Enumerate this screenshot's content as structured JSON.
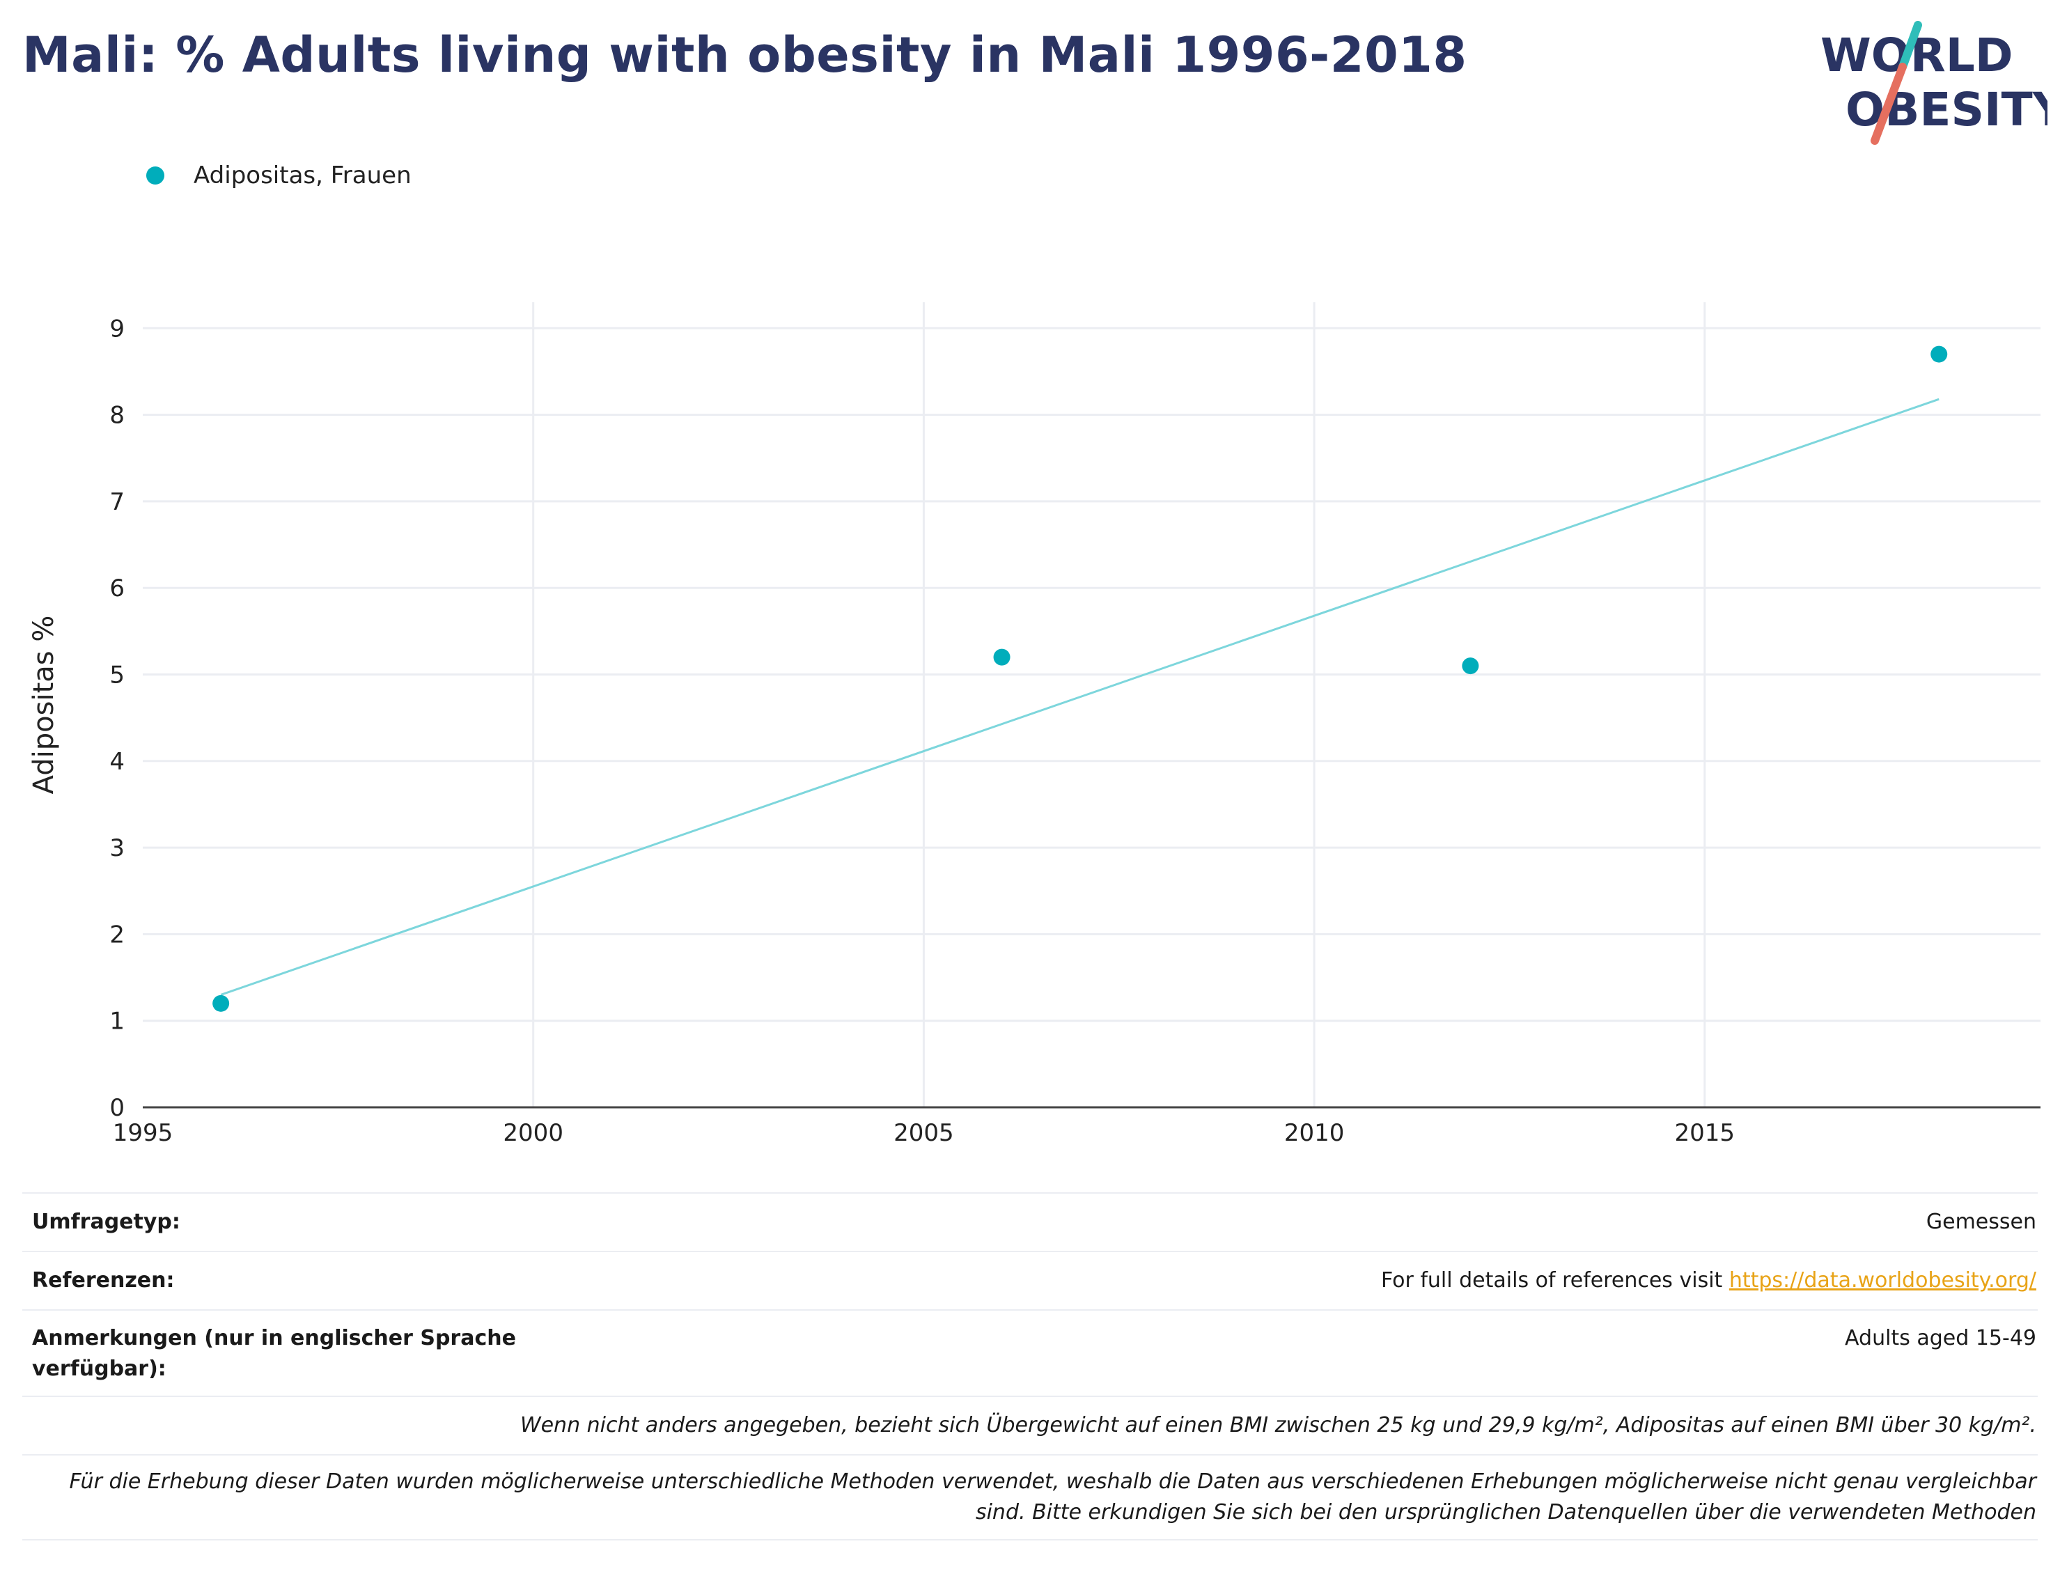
{
  "header": {
    "title": "Mali: % Adults living with obesity in Mali 1996-2018",
    "logo": {
      "line1": "WORLD",
      "line2": "OBESITY"
    }
  },
  "colors": {
    "title": "#2a3463",
    "series": "#00adbb",
    "trend": "#7dd6dc",
    "grid": "#ebedf2",
    "axis": "#444444",
    "link": "#e8a317",
    "logo_teal": "#2fbdb9",
    "logo_coral": "#e56f5f"
  },
  "legend": {
    "items": [
      {
        "label": "Adipositas, Frauen"
      }
    ]
  },
  "chart_data": {
    "type": "scatter",
    "series": [
      {
        "name": "Adipositas, Frauen",
        "x": [
          1996,
          2006,
          2012,
          2018
        ],
        "y": [
          1.2,
          5.2,
          5.1,
          8.7
        ]
      }
    ],
    "trendline": {
      "x": [
        1996,
        2018
      ],
      "y": [
        1.3,
        8.18
      ]
    },
    "xlabel": "",
    "ylabel": "Adipositas %",
    "xlim": [
      1995,
      2019.3
    ],
    "ylim": [
      0,
      9.3
    ],
    "xticks": [
      1995,
      2000,
      2005,
      2010,
      2015
    ],
    "yticks": [
      0,
      1,
      2,
      3,
      4,
      5,
      6,
      7,
      8,
      9
    ],
    "grid": true,
    "legend_position": "top-left"
  },
  "info": {
    "survey_type": {
      "label": "Umfragetyp:",
      "value": "Gemessen"
    },
    "references": {
      "label": "Referenzen:",
      "text": "For full details of references visit ",
      "link": "https://data.worldobesity.org/"
    },
    "notes": {
      "label": "Anmerkungen (nur in englischer Sprache verfügbar):",
      "value": "Adults aged 15-49"
    },
    "definition": "Wenn nicht anders angegeben, bezieht sich Übergewicht auf einen BMI zwischen 25 kg und 29,9 kg/m², Adipositas auf einen BMI über 30 kg/m².",
    "disclaimer": "Für die Erhebung dieser Daten wurden möglicherweise unterschiedliche Methoden verwendet, weshalb die Daten aus verschiedenen Erhebungen möglicherweise nicht genau vergleichbar sind. Bitte erkundigen Sie sich bei den ursprünglichen Datenquellen über die verwendeten Methoden"
  }
}
